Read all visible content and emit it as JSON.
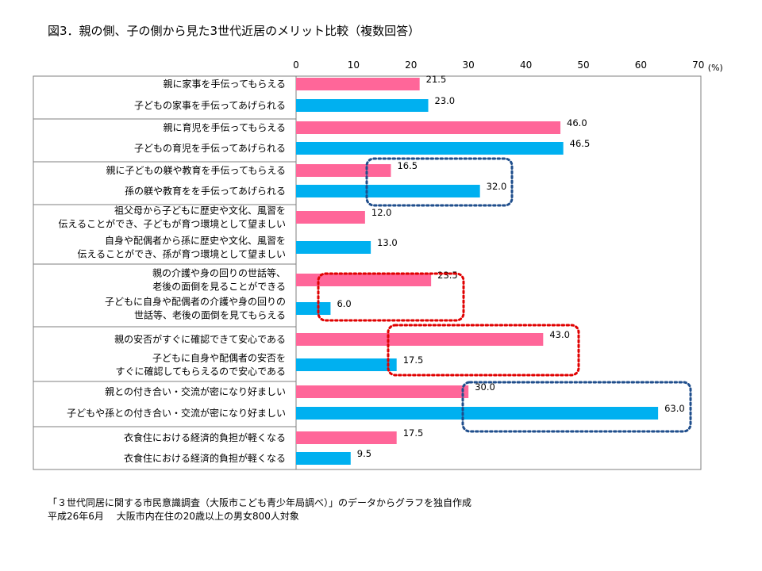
{
  "chart_data": {
    "type": "bar",
    "orientation": "horizontal",
    "title": "図3．親の側、子の側から見た3世代近居のメリット比較（複数回答）",
    "unit": "(%)",
    "xlim": [
      0,
      70
    ],
    "xticks": [
      "0",
      "10",
      "20",
      "30",
      "40",
      "50",
      "60",
      "70"
    ],
    "colors": {
      "parent": "#ff6699",
      "child": "#00b0f0",
      "blue_box": "#1f4e8c",
      "red_box": "#e00000"
    },
    "groups": [
      {
        "rows": [
          {
            "label": [
              "親に家事を手伝ってもらえる"
            ],
            "value": 21.5,
            "value_label": "21.5",
            "side": "parent"
          },
          {
            "label": [
              "子どもの家事を手伝ってあげられる"
            ],
            "value": 23.0,
            "value_label": "23.0",
            "side": "child"
          }
        ]
      },
      {
        "rows": [
          {
            "label": [
              "親に育児を手伝ってもらえる"
            ],
            "value": 46.0,
            "value_label": "46.0",
            "side": "parent"
          },
          {
            "label": [
              "子どもの育児を手伝ってあげられる"
            ],
            "value": 46.5,
            "value_label": "46.5",
            "side": "child"
          }
        ]
      },
      {
        "rows": [
          {
            "label": [
              "親に子どもの躾や教育を手伝ってもらえる"
            ],
            "value": 16.5,
            "value_label": "16.5",
            "side": "parent"
          },
          {
            "label": [
              "孫の躾や教育をを手伝ってあげられる"
            ],
            "value": 32.0,
            "value_label": "32.0",
            "side": "child"
          }
        ],
        "highlight": "blue"
      },
      {
        "rows": [
          {
            "label": [
              "祖父母から子どもに歴史や文化、風習を",
              "伝えることができ、子どもが育つ環境として望ましい"
            ],
            "value": 12.0,
            "value_label": "12.0",
            "side": "parent"
          },
          {
            "label": [
              "自身や配偶者から孫に歴史や文化、風習を",
              "伝えることができ、孫が育つ環境として望ましい"
            ],
            "value": 13.0,
            "value_label": "13.0",
            "side": "child"
          }
        ]
      },
      {
        "rows": [
          {
            "label": [
              "親の介護や身の回りの世話等、",
              "老後の面倒を見ることができる"
            ],
            "value": 23.5,
            "value_label": "23.5",
            "side": "parent"
          },
          {
            "label": [
              "子どもに自身や配偶者の介護や身の回りの",
              "世話等、老後の面倒を見てもらえる"
            ],
            "value": 6.0,
            "value_label": "6.0",
            "side": "child"
          }
        ],
        "highlight": "red"
      },
      {
        "rows": [
          {
            "label": [
              "親の安否がすぐに確認できて安心である"
            ],
            "value": 43.0,
            "value_label": "43.0",
            "side": "parent"
          },
          {
            "label": [
              "子どもに自身や配偶者の安否を",
              "すぐに確認してもらえるので安心である"
            ],
            "value": 17.5,
            "value_label": "17.5",
            "side": "child"
          }
        ],
        "highlight": "red"
      },
      {
        "rows": [
          {
            "label": [
              "親との付き合い・交流が密になり好ましい"
            ],
            "value": 30.0,
            "value_label": "30.0",
            "side": "parent"
          },
          {
            "label": [
              "子どもや孫との付き合い・交流が密になり好ましい"
            ],
            "value": 63.0,
            "value_label": "63.0",
            "side": "child"
          }
        ],
        "highlight": "blue"
      },
      {
        "rows": [
          {
            "label": [
              "衣食住における経済的負担が軽くなる"
            ],
            "value": 17.5,
            "value_label": "17.5",
            "side": "parent"
          },
          {
            "label": [
              "衣食住における経済的負担が軽くなる"
            ],
            "value": 9.5,
            "value_label": "9.5",
            "side": "child"
          }
        ]
      }
    ]
  },
  "footnote": {
    "line1": "「３世代同居に関する市民意識調査（大阪市こども青少年局調べ）」のデータからグラフを独自作成",
    "line2": "平成26年6月　 大阪市内在住の20歳以上の男女800人対象"
  }
}
